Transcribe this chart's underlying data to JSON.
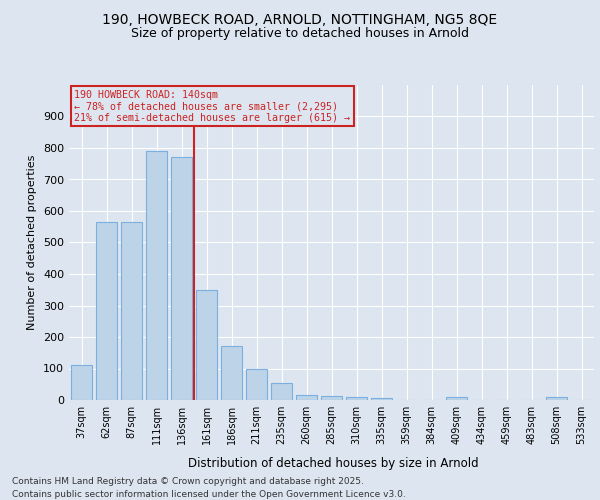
{
  "title1": "190, HOWBECK ROAD, ARNOLD, NOTTINGHAM, NG5 8QE",
  "title2": "Size of property relative to detached houses in Arnold",
  "xlabel": "Distribution of detached houses by size in Arnold",
  "ylabel": "Number of detached properties",
  "categories": [
    "37sqm",
    "62sqm",
    "87sqm",
    "111sqm",
    "136sqm",
    "161sqm",
    "186sqm",
    "211sqm",
    "235sqm",
    "260sqm",
    "285sqm",
    "310sqm",
    "335sqm",
    "359sqm",
    "384sqm",
    "409sqm",
    "434sqm",
    "459sqm",
    "483sqm",
    "508sqm",
    "533sqm"
  ],
  "values": [
    110,
    565,
    565,
    790,
    770,
    350,
    170,
    100,
    55,
    15,
    12,
    8,
    5,
    0,
    0,
    8,
    0,
    0,
    0,
    8,
    0
  ],
  "bar_color": "#bdd4e8",
  "bar_edgecolor": "#7aafe0",
  "vline_color": "#cc2222",
  "vline_x": 4.5,
  "annotation_text": "190 HOWBECK ROAD: 140sqm\n← 78% of detached houses are smaller (2,295)\n21% of semi-detached houses are larger (615) →",
  "annotation_box_edgecolor": "#cc2222",
  "annotation_text_color": "#cc2222",
  "ylim": [
    0,
    1000
  ],
  "yticks": [
    0,
    100,
    200,
    300,
    400,
    500,
    600,
    700,
    800,
    900
  ],
  "bg_color": "#dde6f0",
  "footer1": "Contains HM Land Registry data © Crown copyright and database right 2025.",
  "footer2": "Contains public sector information licensed under the Open Government Licence v3.0."
}
